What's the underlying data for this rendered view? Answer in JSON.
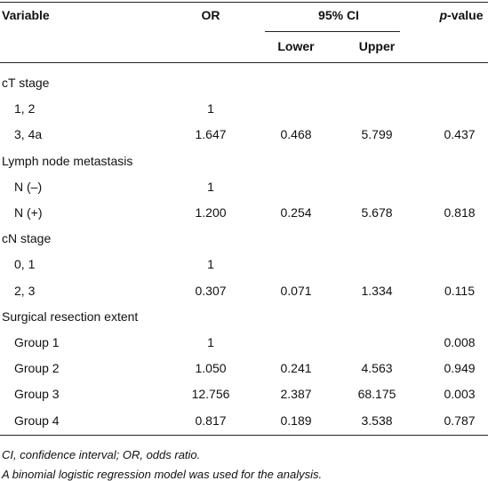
{
  "header": {
    "variable": "Variable",
    "or": "OR",
    "ci": "95% CI",
    "lower": "Lower",
    "upper": "Upper",
    "p_italic": "p",
    "p_rest": "-value"
  },
  "rows": [
    {
      "label": "cT stage"
    },
    {
      "label": "1, 2",
      "or": "1",
      "indent": true
    },
    {
      "label": "3, 4a",
      "or": "1.647",
      "lower": "0.468",
      "upper": "5.799",
      "p": "0.437",
      "indent": true
    },
    {
      "label": "Lymph node metastasis"
    },
    {
      "label": "N (–)",
      "or": "1",
      "indent": true
    },
    {
      "label": "N (+)",
      "or": "1.200",
      "lower": "0.254",
      "upper": "5.678",
      "p": "0.818",
      "indent": true
    },
    {
      "label": "cN stage"
    },
    {
      "label": "0, 1",
      "or": "1",
      "indent": true
    },
    {
      "label": "2, 3",
      "or": "0.307",
      "lower": "0.071",
      "upper": "1.334",
      "p": "0.115",
      "indent": true
    },
    {
      "label": "Surgical resection extent"
    },
    {
      "label": "Group 1",
      "or": "1",
      "p": "0.008",
      "indent": true
    },
    {
      "label": "Group 2",
      "or": "1.050",
      "lower": "0.241",
      "upper": "4.563",
      "p": "0.949",
      "indent": true
    },
    {
      "label": "Group 3",
      "or": "12.756",
      "lower": "2.387",
      "upper": "68.175",
      "p": "0.003",
      "indent": true
    },
    {
      "label": "Group 4",
      "or": "0.817",
      "lower": "0.189",
      "upper": "3.538",
      "p": "0.787",
      "indent": true
    }
  ],
  "footnotes": [
    "CI, confidence interval; OR, odds ratio.",
    "A binomial logistic regression model was used for the analysis."
  ]
}
